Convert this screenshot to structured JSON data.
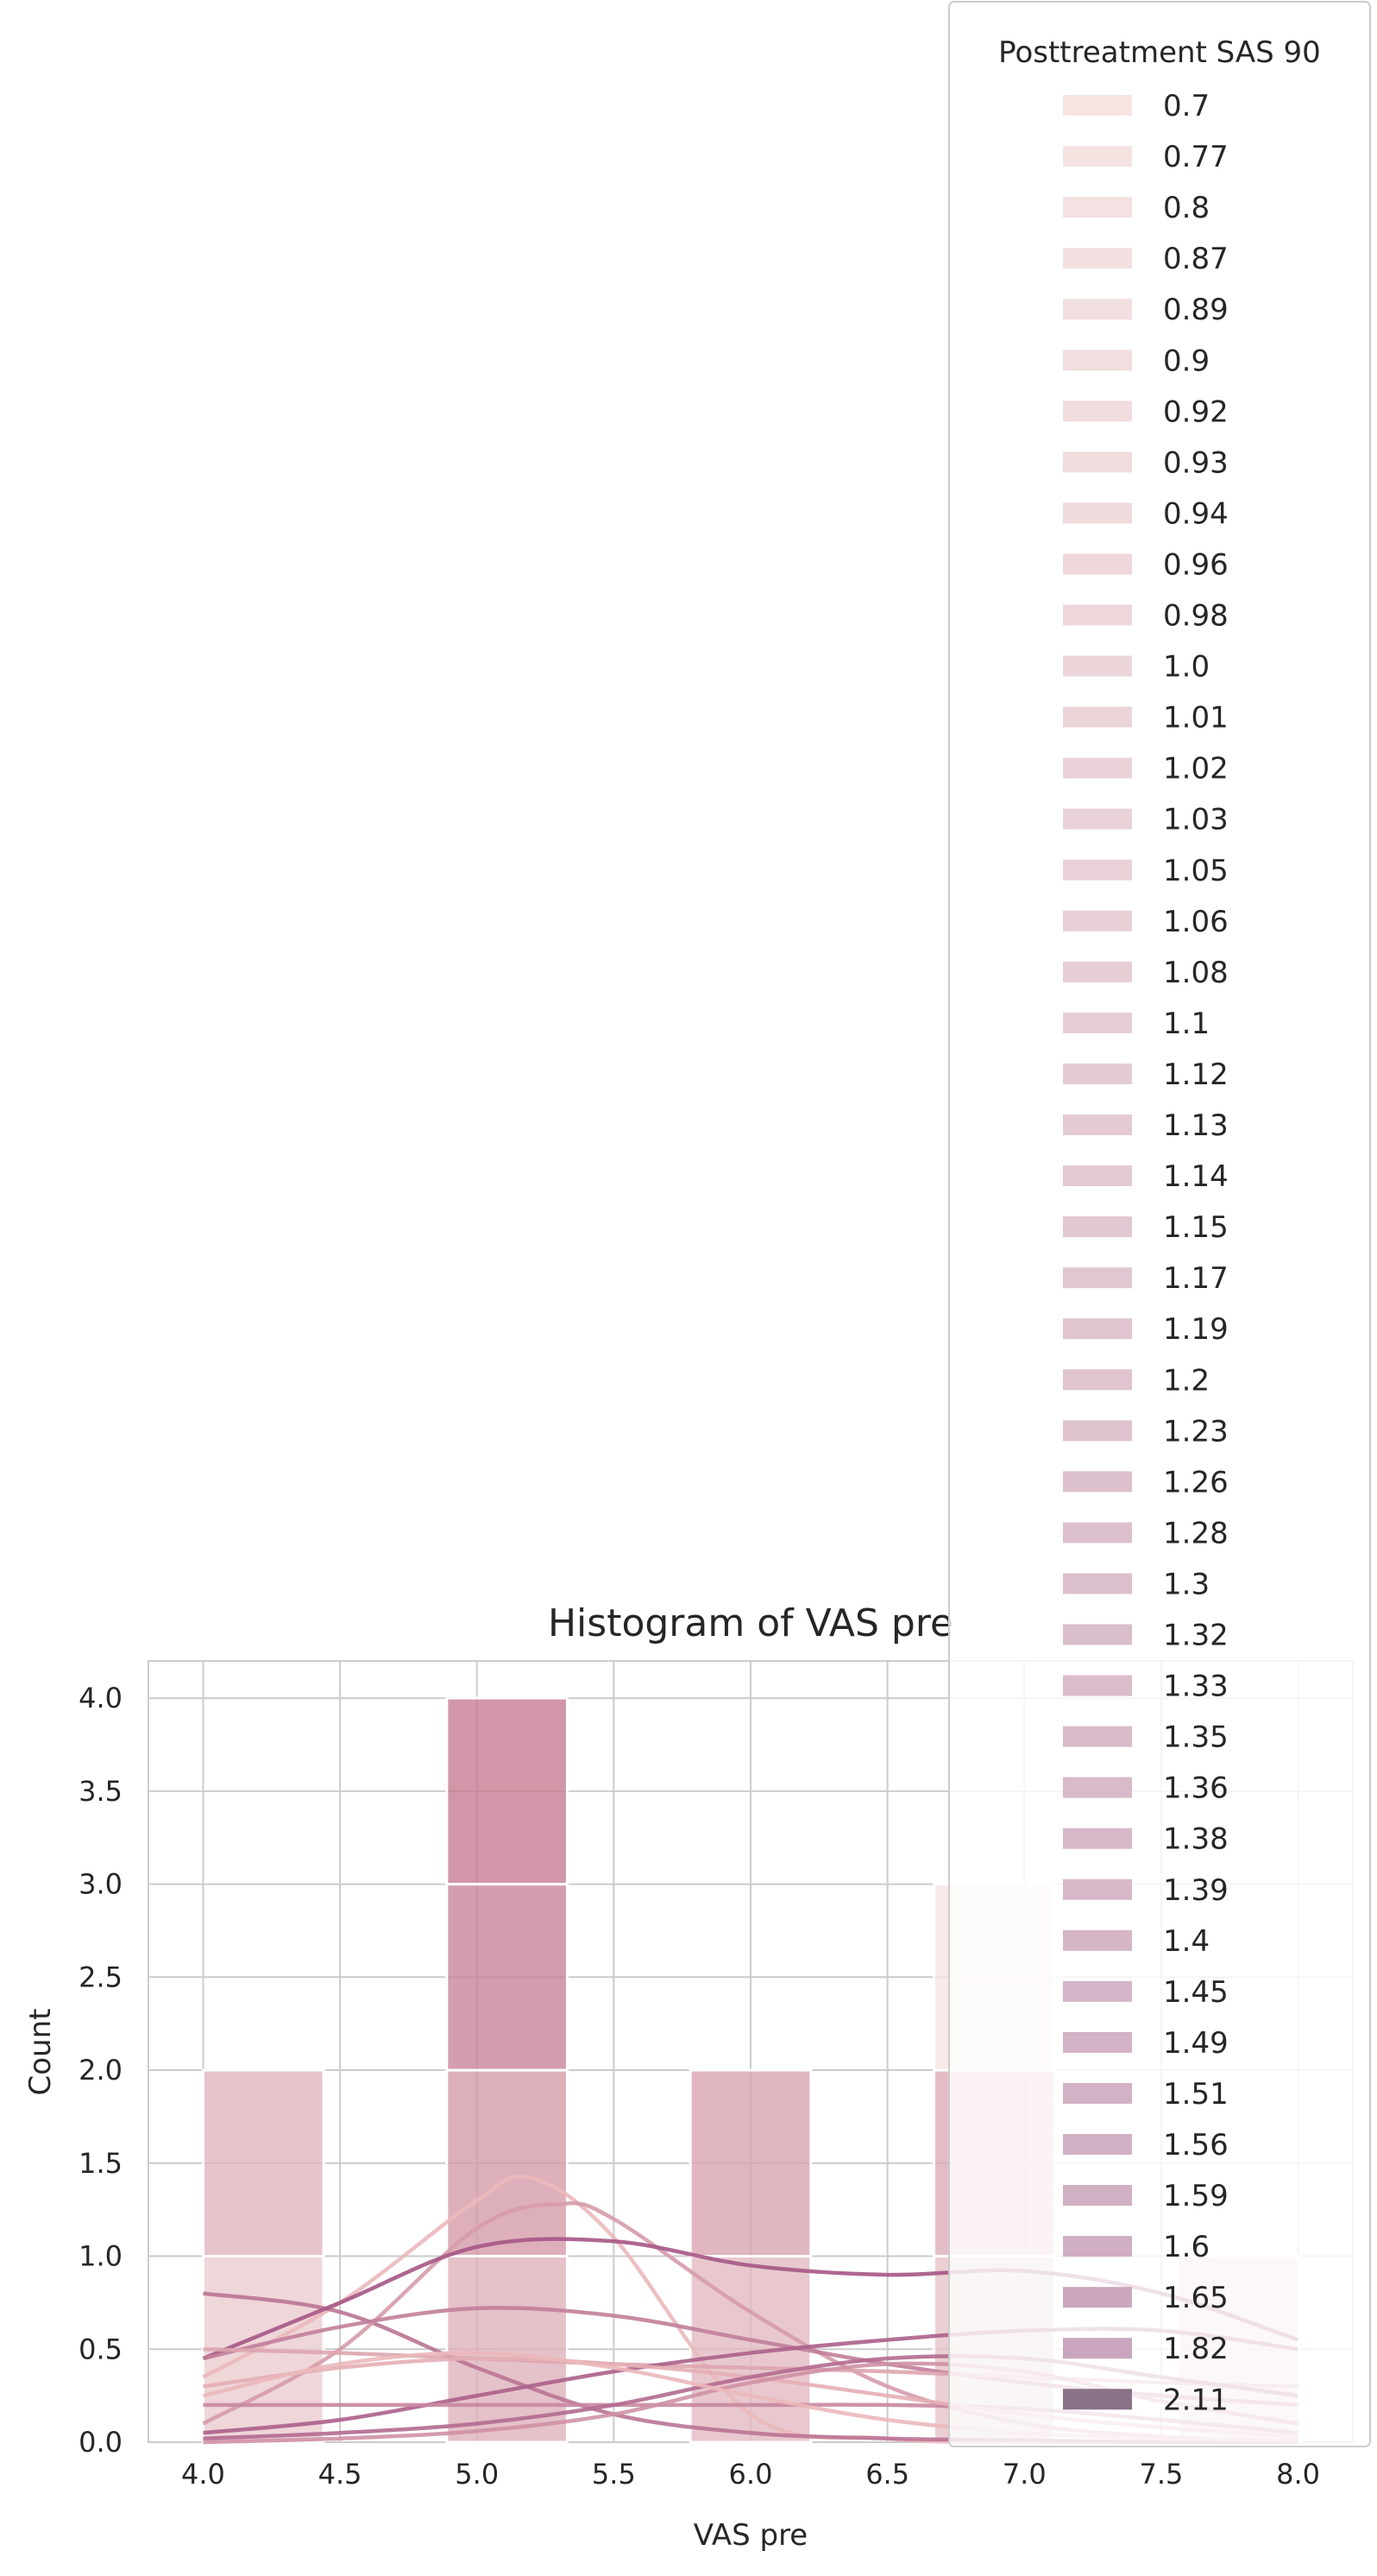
{
  "chart_data": {
    "type": "bar",
    "title": "Histogram of VAS pre",
    "xlabel": "VAS pre",
    "ylabel": "Count",
    "xlim": [
      3.8,
      8.2
    ],
    "ylim": [
      0,
      4.2
    ],
    "xticks": [
      "4.0",
      "4.5",
      "5.0",
      "5.5",
      "6.0",
      "6.5",
      "7.0",
      "7.5",
      "8.0"
    ],
    "yticks": [
      "0.0",
      "0.5",
      "1.0",
      "1.5",
      "2.0",
      "2.5",
      "3.0",
      "3.5",
      "4.0"
    ],
    "grid": true,
    "legend": {
      "title": "Posttreatment SAS 90",
      "placement": "top-right",
      "entries": [
        "0.7",
        "0.77",
        "0.8",
        "0.87",
        "0.89",
        "0.9",
        "0.92",
        "0.93",
        "0.94",
        "0.96",
        "0.98",
        "1.0",
        "1.01",
        "1.02",
        "1.03",
        "1.05",
        "1.06",
        "1.08",
        "1.1",
        "1.12",
        "1.13",
        "1.14",
        "1.15",
        "1.17",
        "1.19",
        "1.2",
        "1.23",
        "1.26",
        "1.28",
        "1.3",
        "1.32",
        "1.33",
        "1.35",
        "1.36",
        "1.38",
        "1.39",
        "1.4",
        "1.45",
        "1.49",
        "1.51",
        "1.56",
        "1.59",
        "1.6",
        "1.65",
        "1.82",
        "2.11"
      ]
    },
    "bins": [
      {
        "x_start": 4.0,
        "x_end": 4.44,
        "counts": [
          1,
          1
        ]
      },
      {
        "x_start": 4.89,
        "x_end": 5.33,
        "counts": [
          1,
          1,
          1,
          1
        ]
      },
      {
        "x_start": 5.78,
        "x_end": 6.22,
        "counts": [
          1,
          1
        ]
      },
      {
        "x_start": 6.67,
        "x_end": 7.11,
        "counts": [
          1,
          1,
          1
        ]
      },
      {
        "x_start": 7.56,
        "x_end": 8.0,
        "counts": [
          1
        ]
      }
    ],
    "kde_curves": [
      {
        "x": [
          4.0,
          4.5,
          5.0,
          5.2,
          5.5,
          6.0,
          6.5,
          7.0,
          7.5,
          8.0
        ],
        "y": [
          0.35,
          0.75,
          1.3,
          1.42,
          1.1,
          0.15,
          0.02,
          0.0,
          0.0,
          0.0
        ]
      },
      {
        "x": [
          4.0,
          4.5,
          5.0,
          5.5,
          6.0,
          6.5,
          7.0,
          7.5,
          8.0
        ],
        "y": [
          0.8,
          0.7,
          0.4,
          0.15,
          0.05,
          0.02,
          0.01,
          0.0,
          0.0
        ]
      },
      {
        "x": [
          4.0,
          4.5,
          5.0,
          5.3,
          5.5,
          6.0,
          6.5,
          7.0,
          7.5,
          8.0
        ],
        "y": [
          0.1,
          0.5,
          1.15,
          1.28,
          1.2,
          0.7,
          0.3,
          0.1,
          0.03,
          0.0
        ]
      },
      {
        "x": [
          4.0,
          4.5,
          5.0,
          5.5,
          6.0,
          6.5,
          7.0,
          7.5,
          8.0
        ],
        "y": [
          0.45,
          0.75,
          1.05,
          1.08,
          0.95,
          0.9,
          0.92,
          0.8,
          0.55
        ]
      },
      {
        "x": [
          4.0,
          4.5,
          5.0,
          5.5,
          6.0,
          6.5,
          7.0,
          7.5,
          8.0
        ],
        "y": [
          0.45,
          0.62,
          0.72,
          0.68,
          0.55,
          0.42,
          0.32,
          0.25,
          0.2
        ]
      },
      {
        "x": [
          4.0,
          4.5,
          5.0,
          5.5,
          6.0,
          6.5,
          7.0,
          7.5,
          8.0
        ],
        "y": [
          0.5,
          0.48,
          0.45,
          0.42,
          0.4,
          0.38,
          0.35,
          0.32,
          0.3
        ]
      },
      {
        "x": [
          4.0,
          4.5,
          5.0,
          5.5,
          6.0,
          6.5,
          7.0,
          7.5,
          8.0
        ],
        "y": [
          0.05,
          0.12,
          0.25,
          0.38,
          0.48,
          0.55,
          0.6,
          0.6,
          0.5
        ]
      },
      {
        "x": [
          4.0,
          4.5,
          5.0,
          5.5,
          6.0,
          6.5,
          7.0,
          7.5,
          8.0
        ],
        "y": [
          0.2,
          0.2,
          0.2,
          0.2,
          0.2,
          0.2,
          0.18,
          0.12,
          0.05
        ]
      },
      {
        "x": [
          4.0,
          4.5,
          5.0,
          5.5,
          6.0,
          6.5,
          7.0,
          7.5,
          8.0
        ],
        "y": [
          0.3,
          0.4,
          0.45,
          0.42,
          0.35,
          0.25,
          0.15,
          0.08,
          0.03
        ]
      },
      {
        "x": [
          4.0,
          4.5,
          5.0,
          5.5,
          6.0,
          6.5,
          7.0,
          7.5,
          8.0
        ],
        "y": [
          0.02,
          0.05,
          0.1,
          0.2,
          0.35,
          0.45,
          0.45,
          0.35,
          0.25
        ]
      },
      {
        "x": [
          4.0,
          4.5,
          5.0,
          5.5,
          6.0,
          6.5,
          7.0,
          7.5,
          8.0
        ],
        "y": [
          0.0,
          0.02,
          0.06,
          0.15,
          0.32,
          0.42,
          0.38,
          0.22,
          0.1
        ]
      },
      {
        "x": [
          4.0,
          4.5,
          5.0,
          5.5,
          6.0,
          6.5,
          7.0,
          7.5,
          8.0
        ],
        "y": [
          0.25,
          0.42,
          0.48,
          0.4,
          0.25,
          0.12,
          0.05,
          0.02,
          0.01
        ]
      }
    ],
    "colors": {
      "palette_light": "#f6e4e2",
      "palette_dark": "#8a7388",
      "kde_light": "#ebb8ba",
      "kde_dark": "#9e4d80",
      "grid": "#cccccc",
      "legend_border": "#cccccc"
    }
  }
}
